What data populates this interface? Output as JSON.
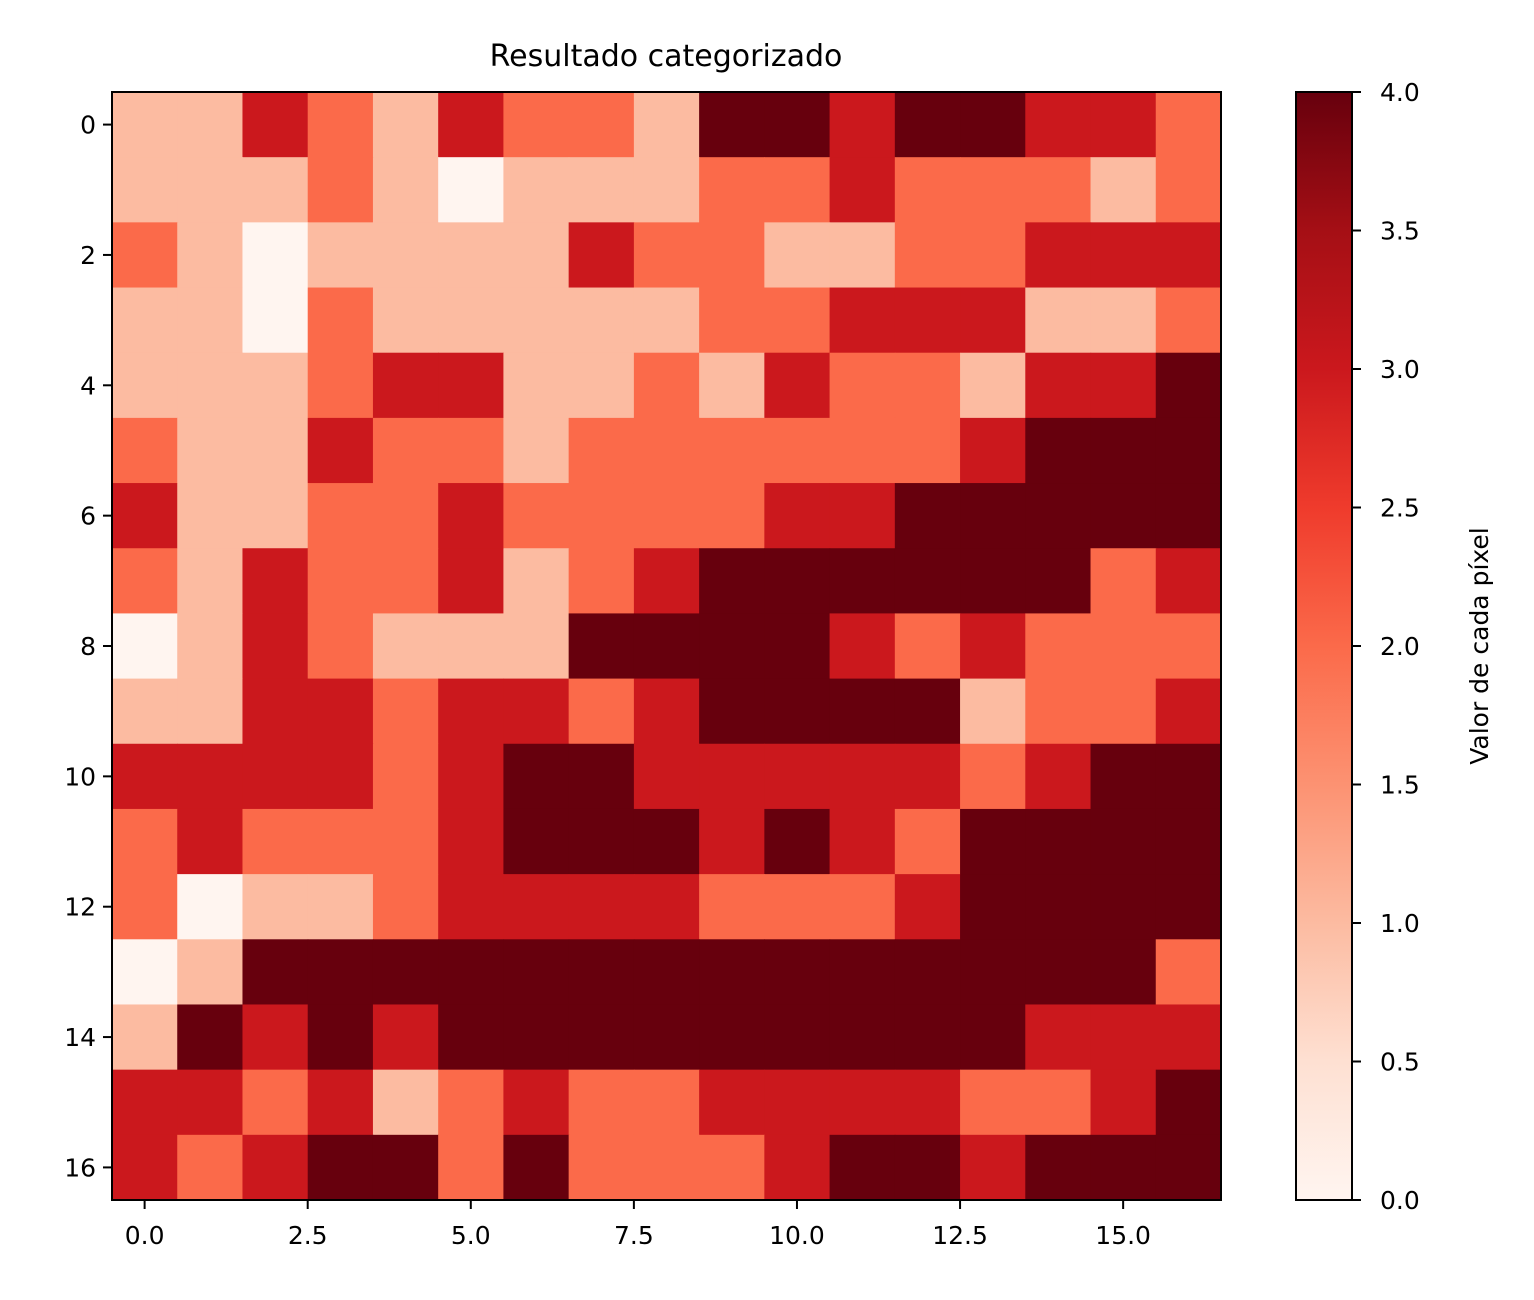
{
  "chart_data": {
    "type": "heatmap",
    "title": "Resultado categorizado",
    "colormap": "Reds",
    "colorbar_label": "Valor de cada píxel",
    "vmin": 0,
    "vmax": 4,
    "x_ticks": [
      "0.0",
      "2.5",
      "5.0",
      "7.5",
      "10.0",
      "12.5",
      "15.0"
    ],
    "y_ticks": [
      "0",
      "2",
      "4",
      "6",
      "8",
      "10",
      "12",
      "14",
      "16"
    ],
    "colorbar_ticks": [
      "0.0",
      "0.5",
      "1.0",
      "1.5",
      "2.0",
      "2.5",
      "3.0",
      "3.5",
      "4.0"
    ],
    "xlim": [
      -0.5,
      16.5
    ],
    "ylim": [
      16.5,
      -0.5
    ],
    "grid": false,
    "values": [
      [
        1,
        1,
        3,
        2,
        1,
        3,
        2,
        2,
        1,
        4,
        4,
        3,
        4,
        4,
        3,
        3,
        2
      ],
      [
        1,
        1,
        1,
        2,
        1,
        0,
        1,
        1,
        1,
        2,
        2,
        3,
        2,
        2,
        2,
        1,
        2
      ],
      [
        2,
        1,
        0,
        1,
        1,
        1,
        1,
        3,
        2,
        2,
        1,
        1,
        2,
        2,
        3,
        3,
        3
      ],
      [
        1,
        1,
        0,
        2,
        1,
        1,
        1,
        1,
        1,
        2,
        2,
        3,
        3,
        3,
        1,
        1,
        2
      ],
      [
        1,
        1,
        1,
        2,
        3,
        3,
        1,
        1,
        2,
        1,
        3,
        2,
        2,
        1,
        3,
        3,
        4
      ],
      [
        2,
        1,
        1,
        3,
        2,
        2,
        1,
        2,
        2,
        2,
        2,
        2,
        2,
        3,
        4,
        4,
        4
      ],
      [
        3,
        1,
        1,
        2,
        2,
        3,
        2,
        2,
        2,
        2,
        3,
        3,
        4,
        4,
        4,
        4,
        4
      ],
      [
        2,
        1,
        3,
        2,
        2,
        3,
        1,
        2,
        3,
        4,
        4,
        4,
        4,
        4,
        4,
        2,
        3
      ],
      [
        0,
        1,
        3,
        2,
        1,
        1,
        1,
        4,
        4,
        4,
        4,
        3,
        2,
        3,
        2,
        2,
        2
      ],
      [
        1,
        1,
        3,
        3,
        2,
        3,
        3,
        2,
        3,
        4,
        4,
        4,
        4,
        1,
        2,
        2,
        3
      ],
      [
        3,
        3,
        3,
        3,
        2,
        3,
        4,
        4,
        3,
        3,
        3,
        3,
        3,
        2,
        3,
        4,
        4
      ],
      [
        2,
        3,
        2,
        2,
        2,
        3,
        4,
        4,
        4,
        3,
        4,
        3,
        2,
        4,
        4,
        4,
        4
      ],
      [
        2,
        0,
        1,
        1,
        2,
        3,
        3,
        3,
        3,
        2,
        2,
        2,
        3,
        4,
        4,
        4,
        4
      ],
      [
        0,
        1,
        4,
        4,
        4,
        4,
        4,
        4,
        4,
        4,
        4,
        4,
        4,
        4,
        4,
        4,
        2
      ],
      [
        1,
        4,
        3,
        4,
        3,
        4,
        4,
        4,
        4,
        4,
        4,
        4,
        4,
        4,
        3,
        3,
        3
      ],
      [
        3,
        3,
        2,
        3,
        1,
        2,
        3,
        2,
        2,
        3,
        3,
        3,
        3,
        2,
        2,
        3,
        4
      ],
      [
        3,
        2,
        3,
        4,
        4,
        2,
        4,
        2,
        2,
        2,
        3,
        4,
        4,
        3,
        4,
        4,
        4
      ]
    ],
    "category_colors": {
      "0": "#fff5f0",
      "1": "#fcbba1",
      "2": "#fb6a4a",
      "3": "#cb181d",
      "4": "#67000d"
    }
  }
}
